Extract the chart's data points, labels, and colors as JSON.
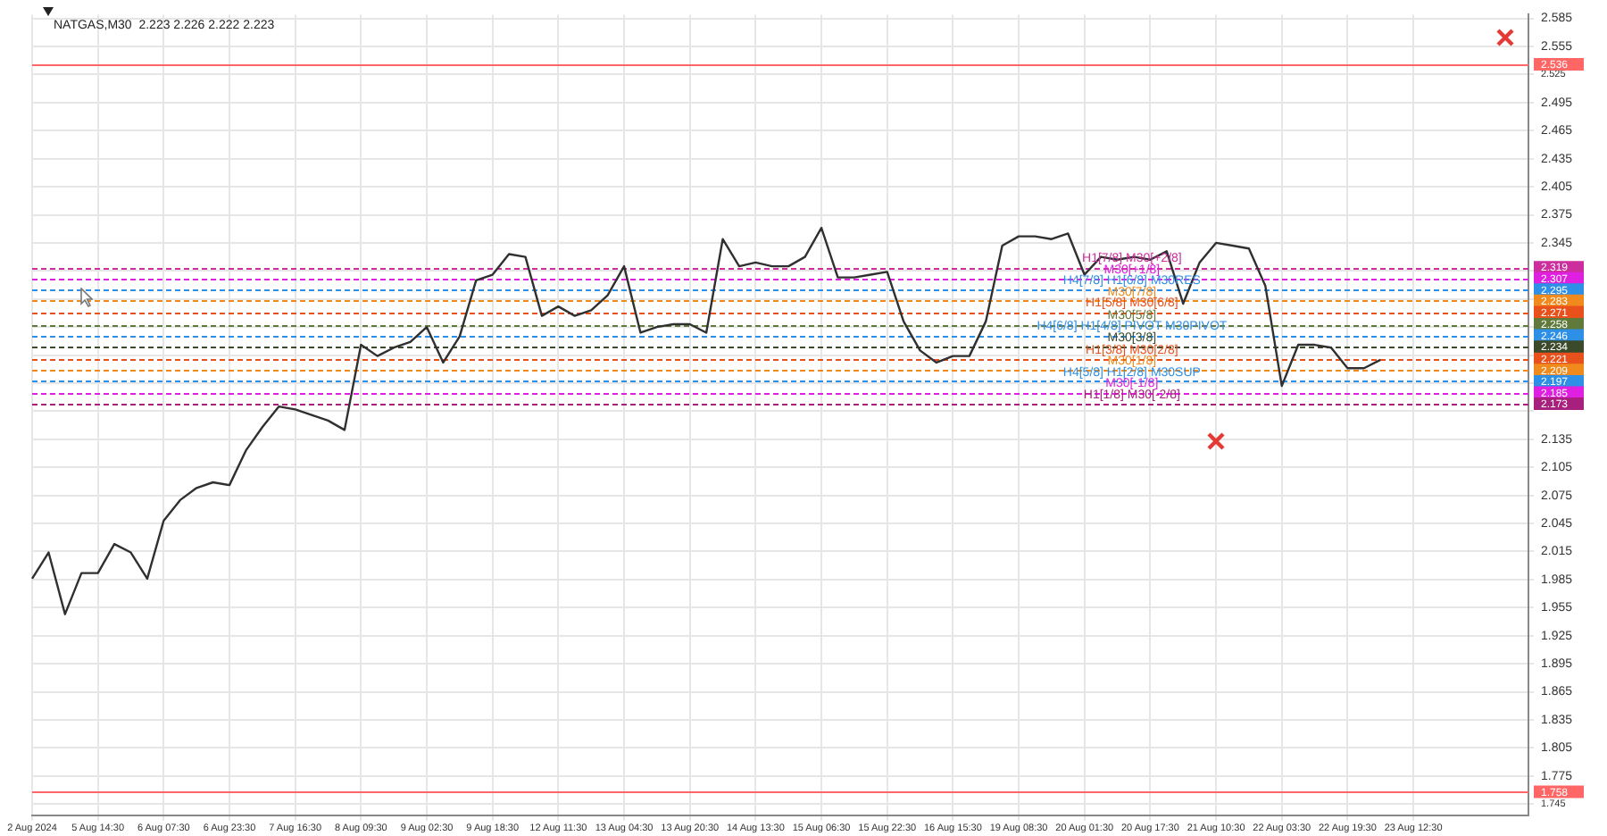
{
  "chart_data": {
    "type": "line",
    "title": "NATGAS,M30  2.223 2.226 2.222 2.223",
    "categories": [
      "2 Aug 2024",
      null,
      null,
      null,
      "5 Aug 14:30",
      null,
      null,
      null,
      "6 Aug 07:30",
      null,
      null,
      null,
      "6 Aug 23:30",
      null,
      null,
      null,
      "7 Aug 16:30",
      null,
      null,
      null,
      "8 Aug 09:30",
      null,
      null,
      null,
      "9 Aug 02:30",
      null,
      null,
      null,
      "9 Aug 18:30",
      null,
      null,
      null,
      "12 Aug 11:30",
      null,
      null,
      null,
      "13 Aug 04:30",
      null,
      null,
      null,
      "13 Aug 20:30",
      null,
      null,
      null,
      "14 Aug 13:30",
      null,
      null,
      null,
      "15 Aug 06:30",
      null,
      null,
      null,
      "15 Aug 22:30",
      null,
      null,
      null,
      "16 Aug 15:30",
      null,
      null,
      null,
      "19 Aug 08:30",
      null,
      null,
      null,
      "20 Aug 01:30",
      null,
      null,
      null,
      "20 Aug 17:30",
      null,
      null,
      null,
      "21 Aug 10:30",
      null,
      null,
      null,
      "22 Aug 03:30",
      null,
      null,
      null,
      "22 Aug 19:30",
      null,
      null,
      null,
      "23 Aug 12:30",
      null,
      null,
      null,
      null,
      null,
      null,
      null
    ],
    "series": [
      {
        "color": "#303030",
        "values": [
          1.986,
          2.014,
          1.948,
          1.992,
          1.992,
          2.023,
          2.014,
          1.986,
          2.048,
          2.07,
          2.083,
          2.089,
          2.086,
          2.123,
          2.148,
          2.17,
          2.167,
          2.161,
          2.155,
          2.145,
          2.236,
          2.224,
          2.233,
          2.239,
          2.255,
          2.217,
          2.245,
          2.305,
          2.311,
          2.333,
          2.33,
          2.267,
          2.277,
          2.267,
          2.273,
          2.289,
          2.32,
          2.249,
          2.255,
          2.258,
          2.258,
          2.249,
          2.349,
          2.32,
          2.324,
          2.32,
          2.32,
          2.33,
          2.361,
          2.308,
          2.308,
          2.311,
          2.314,
          2.261,
          2.23,
          2.217,
          2.224,
          2.224,
          2.261,
          2.342,
          2.352,
          2.352,
          2.349,
          2.355,
          2.311,
          2.33,
          2.327,
          2.33,
          2.327,
          2.336,
          2.28,
          2.324,
          2.345,
          2.342,
          2.339,
          2.299,
          2.192,
          2.236,
          2.236,
          2.233,
          2.211,
          2.211,
          2.22,
          null,
          null,
          null,
          null,
          null,
          null,
          null,
          null,
          null
        ]
      }
    ],
    "ylim": [
      1.733,
      2.589
    ],
    "yticks": [
      1.745,
      1.775,
      1.805,
      1.835,
      1.865,
      1.895,
      1.925,
      1.955,
      1.985,
      2.015,
      2.045,
      2.075,
      2.105,
      2.135,
      {
        "value": 2.165,
        "label": null
      },
      {
        "value": 2.195,
        "label": null
      },
      {
        "value": 2.225,
        "label": null
      },
      {
        "value": 2.255,
        "label": null
      },
      {
        "value": 2.285,
        "label": null
      },
      {
        "value": 2.315,
        "label": null
      },
      2.345,
      2.375,
      2.405,
      2.435,
      2.465,
      2.495,
      2.525,
      2.555,
      2.585
    ],
    "annotations": [
      "2.536",
      "1.758",
      "2.319",
      "2.307",
      "2.295",
      "2.283",
      "2.271",
      "2.258",
      "2.246",
      "2.234",
      "2.221",
      "2.209",
      "2.197",
      "2.185",
      "2.173"
    ],
    "grid": true,
    "ref_lines": [
      {
        "axis": "y",
        "value": 2.536,
        "label": null,
        "color": "#ff6666",
        "line_style": "solid"
      },
      {
        "axis": "y",
        "value": 1.758,
        "label": null,
        "color": "#ff6666",
        "line_style": "solid"
      },
      {
        "axis": "y",
        "value": 2.319,
        "label": "H1[7/8] M30[+2/8]",
        "color": "#cc2e9e",
        "line_style": "dashed"
      },
      {
        "axis": "y",
        "value": 2.307,
        "label": "M30[+1/8]",
        "color": "#e020e0",
        "line_style": "dashed"
      },
      {
        "axis": "y",
        "value": 2.295,
        "label": "H4[7/8] H1[6/8] M30RES",
        "color": "#2e8fe6",
        "line_style": "dashed"
      },
      {
        "axis": "y",
        "value": 2.283,
        "label": "M30[7/8]",
        "color": "#f08a1c",
        "line_style": "dashed"
      },
      {
        "axis": "y",
        "value": 2.271,
        "label": "H1[5/8] M30[6/8]",
        "color": "#e8501c",
        "line_style": "dashed"
      },
      {
        "axis": "y",
        "value": 2.258,
        "label": "M30[5/8]",
        "color": "#5f7a3a",
        "line_style": "dashed"
      },
      {
        "axis": "y",
        "value": 2.246,
        "label": "H4[6/8] H1[4/8] PIVOT M30PIVOT",
        "color": "#2e8fe6",
        "line_style": "dashed"
      },
      {
        "axis": "y",
        "value": 2.234,
        "label": "M30[3/8]",
        "color": "#3a4a2a",
        "line_style": "dashed"
      },
      {
        "axis": "y",
        "value": 2.221,
        "label": "H1[3/8] M30[2/8]",
        "color": "#e8501c",
        "line_style": "dashed"
      },
      {
        "axis": "y",
        "value": 2.209,
        "label": "M30[1/8]",
        "color": "#f08a1c",
        "line_style": "dashed"
      },
      {
        "axis": "y",
        "value": 2.197,
        "label": "H4[5/8] H1[2/8] M30SUP",
        "color": "#2e8fe6",
        "line_style": "dashed"
      },
      {
        "axis": "y",
        "value": 2.185,
        "label": "M30[-1/8]",
        "color": "#e020e0",
        "line_style": "dashed"
      },
      {
        "axis": "y",
        "value": 2.173,
        "label": "H1[1/8] M30[-2/8]",
        "color": "#a8207e",
        "line_style": "dashed"
      }
    ]
  }
}
